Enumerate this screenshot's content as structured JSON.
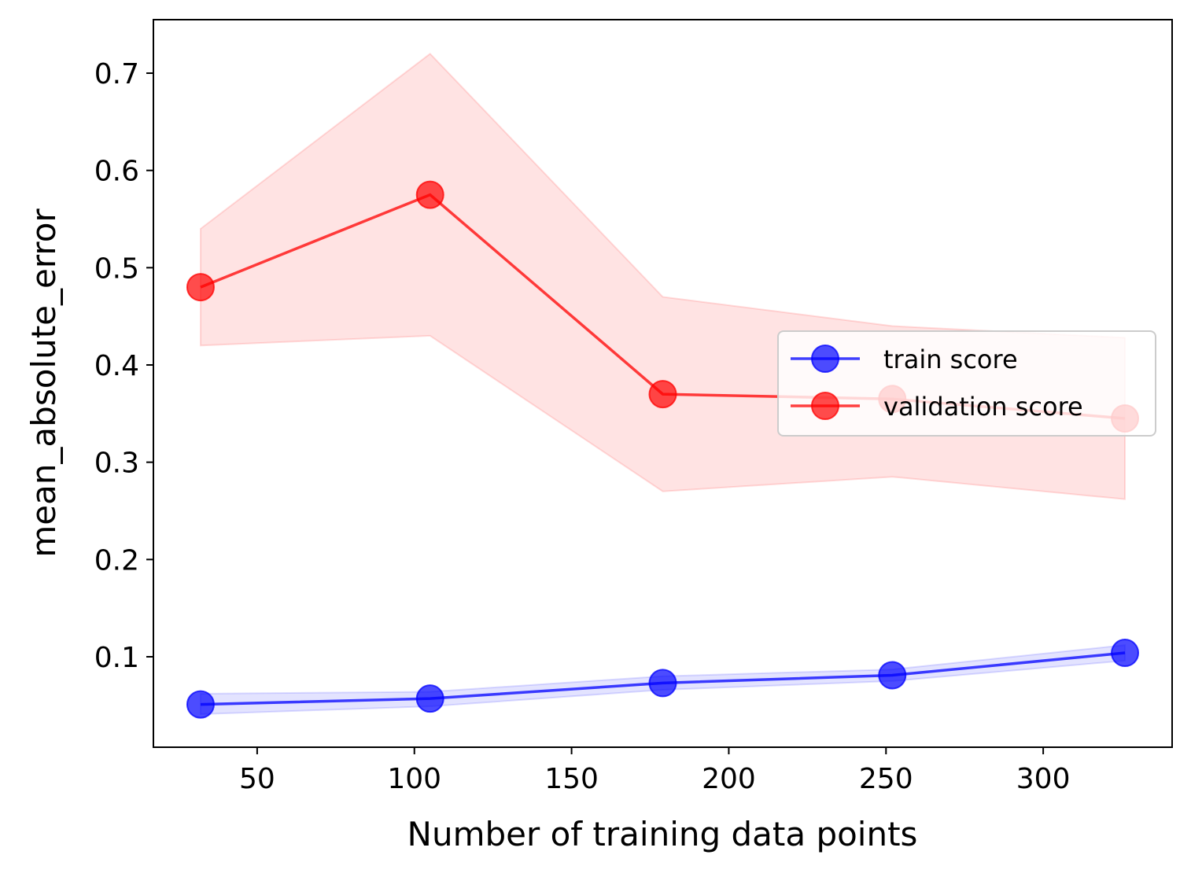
{
  "chart_data": {
    "type": "line",
    "xlabel": "Number of training data points",
    "ylabel": "mean_absolute_error",
    "xlim": [
      17,
      341
    ],
    "ylim": [
      0.007,
      0.755
    ],
    "xticks": [
      50,
      100,
      150,
      200,
      250,
      300
    ],
    "yticks": [
      0.1,
      0.2,
      0.3,
      0.4,
      0.5,
      0.6,
      0.7
    ],
    "x": [
      32,
      105,
      179,
      252,
      326
    ],
    "legend_position": "center-right",
    "grid": false,
    "series": [
      {
        "name": "train score",
        "color": "#0000ff",
        "values": [
          0.051,
          0.057,
          0.073,
          0.081,
          0.104
        ],
        "band_low": [
          0.041,
          0.049,
          0.066,
          0.075,
          0.096
        ],
        "band_high": [
          0.062,
          0.064,
          0.08,
          0.087,
          0.112
        ]
      },
      {
        "name": "validation score",
        "color": "#ff0000",
        "values": [
          0.48,
          0.575,
          0.37,
          0.365,
          0.345
        ],
        "band_low": [
          0.42,
          0.43,
          0.27,
          0.285,
          0.262
        ],
        "band_high": [
          0.54,
          0.72,
          0.47,
          0.44,
          0.428
        ]
      }
    ]
  }
}
